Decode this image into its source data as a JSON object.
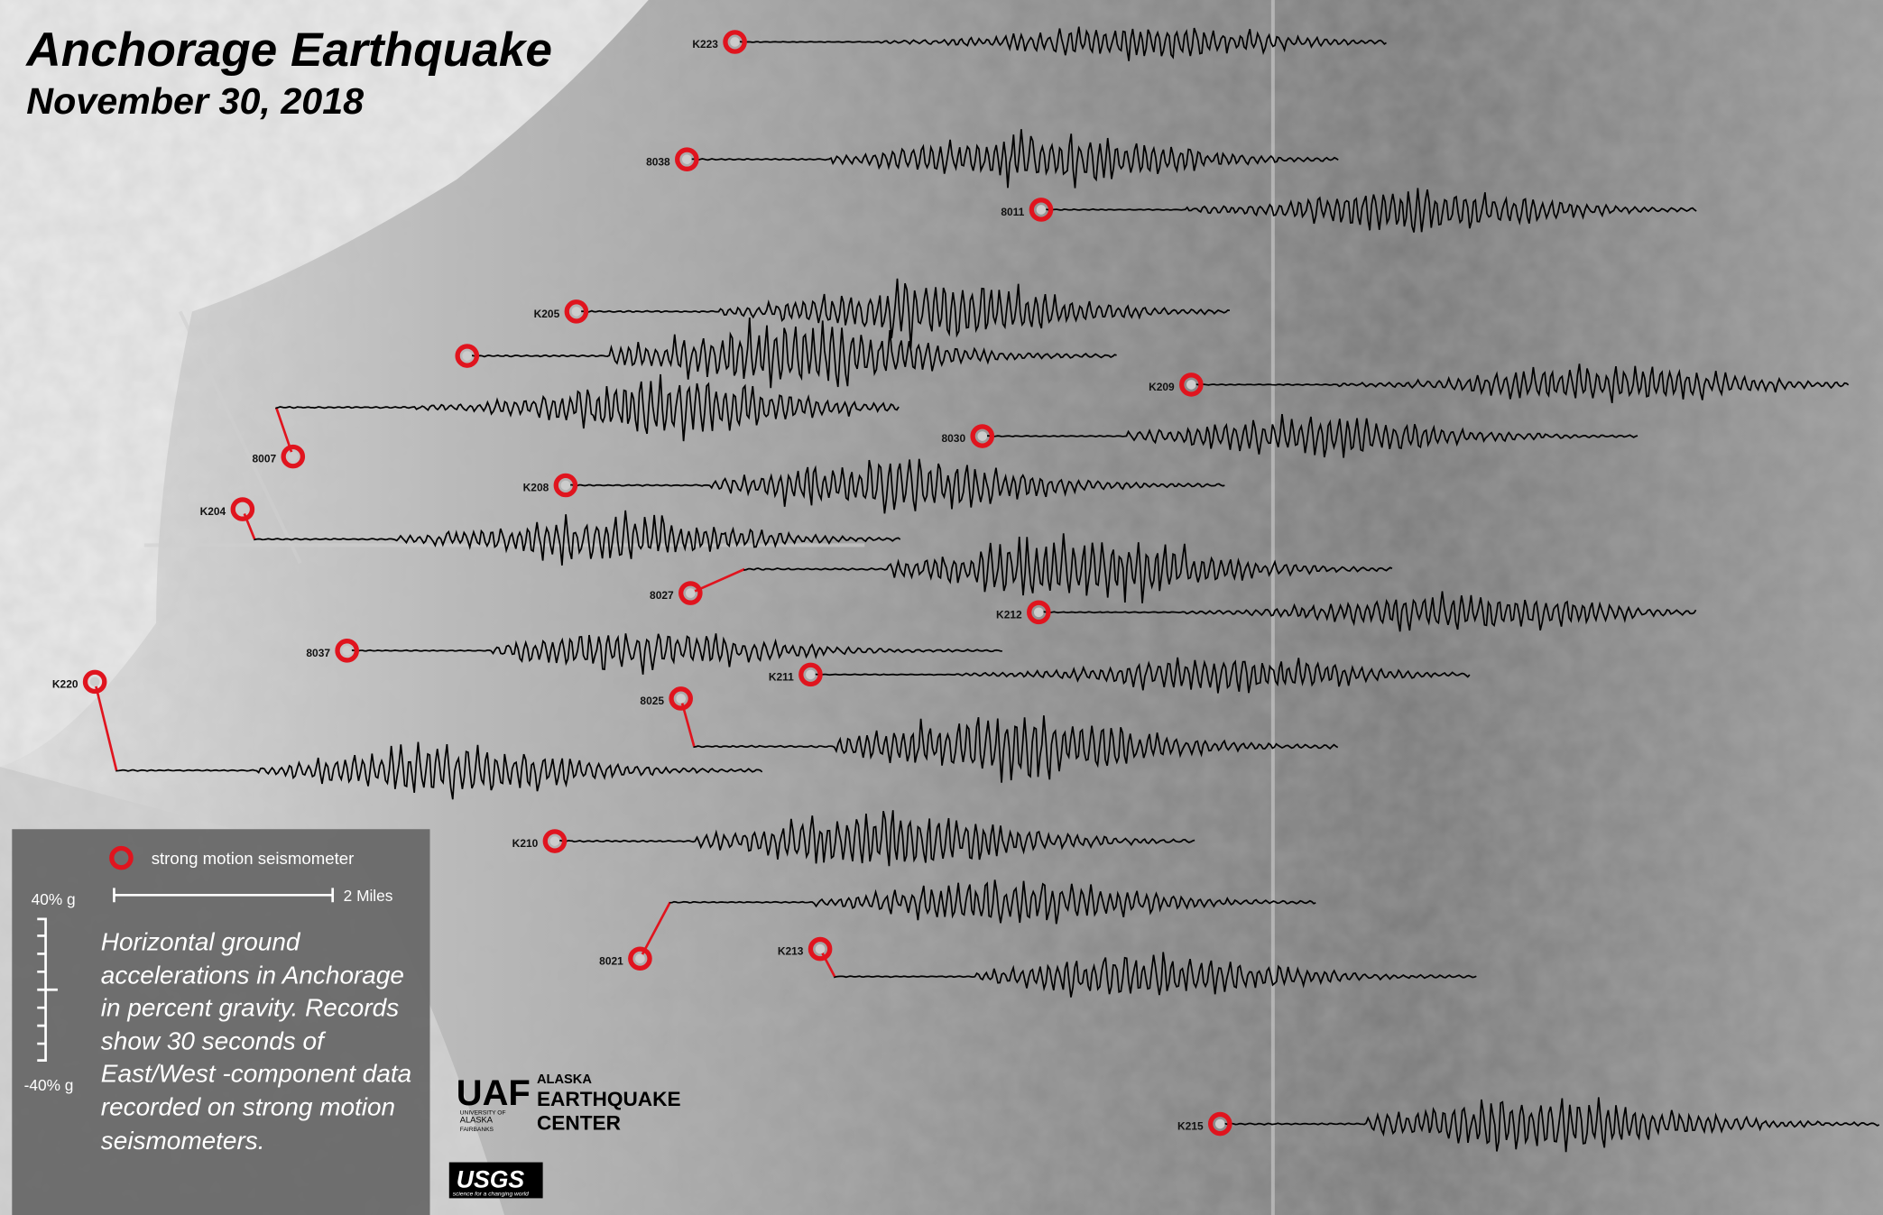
{
  "title": "Anchorage Earthquake",
  "subtitle": "November 30, 2018",
  "stations": [
    "K223",
    "8038",
    "8011",
    "K205",
    "K209",
    "8007",
    "8030",
    "K208",
    "K204",
    "8027",
    "K212",
    "8037",
    "K211",
    "K220",
    "8025",
    "K210",
    "8021",
    "K213",
    "K215"
  ],
  "legend": {
    "marker_label": "strong motion seismometer",
    "scale_label": "2 Miles",
    "amp_top": "40% g",
    "amp_bottom": "-40% g",
    "description": "Horizontal ground accelerations in Anchorage in percent gravity. Records show 30 seconds of East/West -component data recorded on strong motion seismometers."
  },
  "logos": {
    "uaf": "UAF",
    "uaf_sub": [
      "UNIVERSITY OF",
      "ALASKA",
      "FAIRBANKS"
    ],
    "aec": [
      "ALASKA",
      "EARTHQUAKE",
      "CENTER"
    ],
    "usgs": "USGS",
    "usgs_sub": "science for a changing world"
  }
}
